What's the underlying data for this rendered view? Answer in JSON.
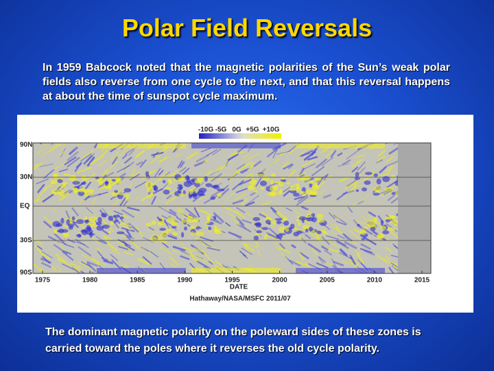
{
  "title": "Polar Field Reversals",
  "intro": "In 1959 Babcock noted that the magnetic polarities of the Sun’s weak polar fields also reverse from one cycle to the next, and that this reversal happens at about the time of sunspot cycle maximum.",
  "figure": {
    "colorbar_labels": [
      "-10G",
      "-5G",
      "0G",
      "+5G",
      "+10G"
    ],
    "y_labels": [
      "90N",
      "30N",
      "EQ",
      "30S",
      "90S"
    ],
    "x_labels": [
      "1975",
      "1980",
      "1985",
      "1990",
      "1995",
      "2000",
      "2005",
      "2010",
      "2015"
    ],
    "x_axis_label": "DATE",
    "credit": "Hathaway/NASA/MSFC 2011/07"
  },
  "caption": "The dominant magnetic polarity on the poleward sides of these zones is carried toward the poles where it reverses the old cycle polarity."
}
